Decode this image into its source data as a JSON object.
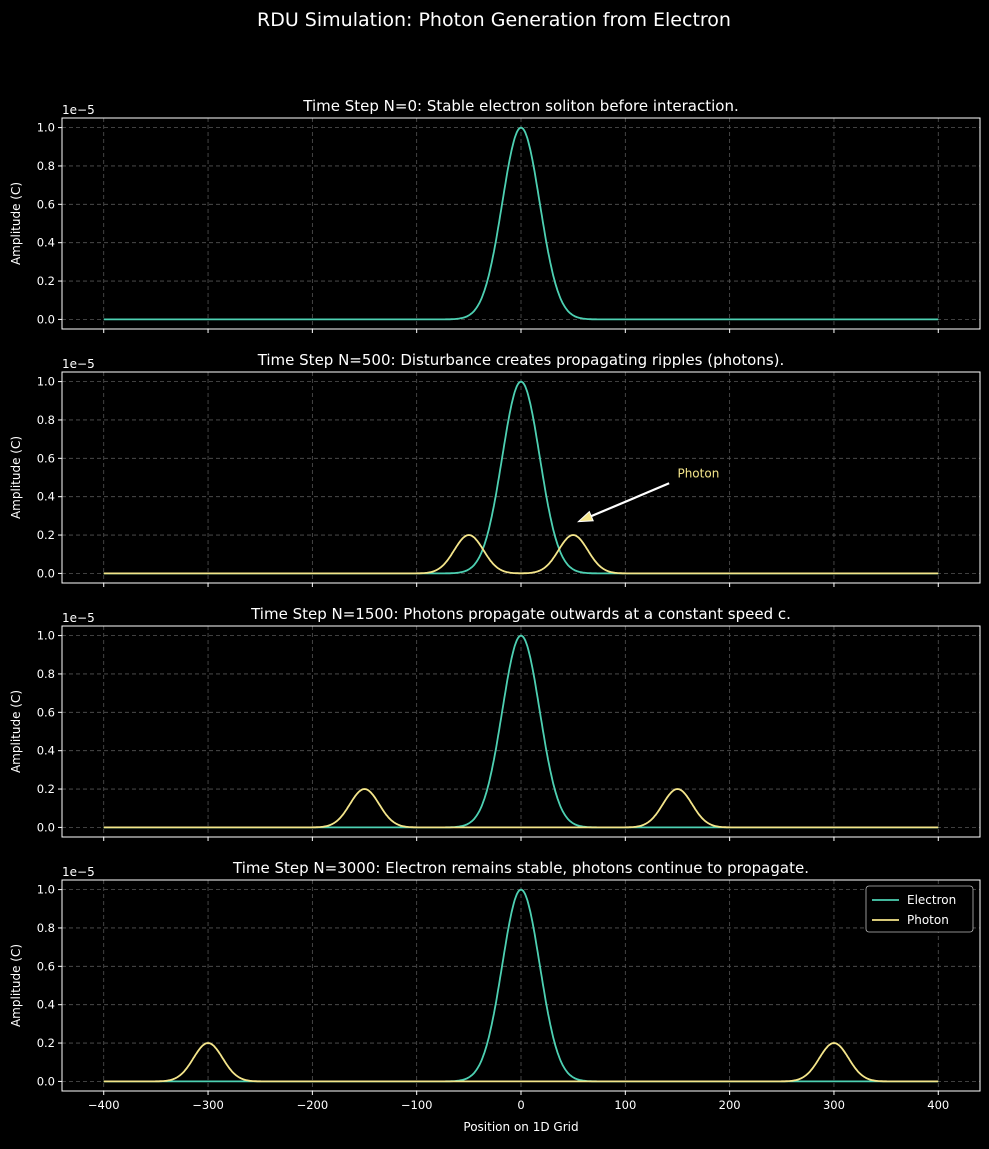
{
  "chart_data": {
    "suptitle": "RDU Simulation: Photon Generation from Electron",
    "colors": {
      "electron": "#4dd0b2",
      "photon": "#f4e58a",
      "background": "#000000",
      "axes": "#ffffff",
      "grid": "#555555"
    },
    "shared_x": {
      "xlabel": "Position on 1D Grid",
      "xlim": [
        -440,
        440
      ],
      "xticks": [
        -400,
        -300,
        -200,
        -100,
        0,
        100,
        200,
        300,
        400
      ],
      "data_range": [
        -400,
        400
      ]
    },
    "charts": [
      {
        "type": "line",
        "title": "Time Step N=0: Stable electron soliton before interaction.",
        "ylabel": "Amplitude (C)",
        "y_offset_label": "1e−5",
        "ylim": [
          -0.05,
          1.05
        ],
        "yticks": [
          "0.0",
          "0.2",
          "0.4",
          "0.6",
          "0.8",
          "1.0"
        ],
        "grid": true,
        "series": [
          {
            "key": "electron",
            "peaks": [
              {
                "center": 0,
                "amplitude": 1.0,
                "sigma": 18
              }
            ]
          }
        ]
      },
      {
        "type": "line",
        "title": "Time Step N=500: Disturbance creates propagating ripples (photons).",
        "ylabel": "Amplitude (C)",
        "y_offset_label": "1e−5",
        "ylim": [
          -0.05,
          1.05
        ],
        "yticks": [
          "0.0",
          "0.2",
          "0.4",
          "0.6",
          "0.8",
          "1.0"
        ],
        "grid": true,
        "series": [
          {
            "key": "electron",
            "peaks": [
              {
                "center": 0,
                "amplitude": 1.0,
                "sigma": 18
              }
            ]
          },
          {
            "key": "photon",
            "peaks": [
              {
                "center": -50,
                "amplitude": 0.2,
                "sigma": 14
              },
              {
                "center": 50,
                "amplitude": 0.2,
                "sigma": 14
              }
            ]
          }
        ],
        "annotation": {
          "text": "Photon",
          "text_xy": [
            150,
            0.52
          ],
          "arrow_from": [
            142,
            0.47
          ],
          "arrow_to": [
            55,
            0.27
          ]
        }
      },
      {
        "type": "line",
        "title": "Time Step N=1500: Photons propagate outwards at a constant speed c.",
        "ylabel": "Amplitude (C)",
        "y_offset_label": "1e−5",
        "ylim": [
          -0.05,
          1.05
        ],
        "yticks": [
          "0.0",
          "0.2",
          "0.4",
          "0.6",
          "0.8",
          "1.0"
        ],
        "grid": true,
        "series": [
          {
            "key": "electron",
            "peaks": [
              {
                "center": 0,
                "amplitude": 1.0,
                "sigma": 18
              }
            ]
          },
          {
            "key": "photon",
            "peaks": [
              {
                "center": -150,
                "amplitude": 0.2,
                "sigma": 14
              },
              {
                "center": 150,
                "amplitude": 0.2,
                "sigma": 14
              }
            ]
          }
        ]
      },
      {
        "type": "line",
        "title": "Time Step N=3000: Electron remains stable, photons continue to propagate.",
        "ylabel": "Amplitude (C)",
        "y_offset_label": "1e−5",
        "ylim": [
          -0.05,
          1.05
        ],
        "yticks": [
          "0.0",
          "0.2",
          "0.4",
          "0.6",
          "0.8",
          "1.0"
        ],
        "grid": true,
        "series": [
          {
            "key": "electron",
            "peaks": [
              {
                "center": 0,
                "amplitude": 1.0,
                "sigma": 18
              }
            ]
          },
          {
            "key": "photon",
            "peaks": [
              {
                "center": -300,
                "amplitude": 0.2,
                "sigma": 14
              },
              {
                "center": 300,
                "amplitude": 0.2,
                "sigma": 14
              }
            ]
          }
        ],
        "legend": {
          "placement": "top-right",
          "entries": [
            {
              "key": "electron",
              "label": "Electron"
            },
            {
              "key": "photon",
              "label": "Photon"
            }
          ]
        }
      }
    ]
  }
}
